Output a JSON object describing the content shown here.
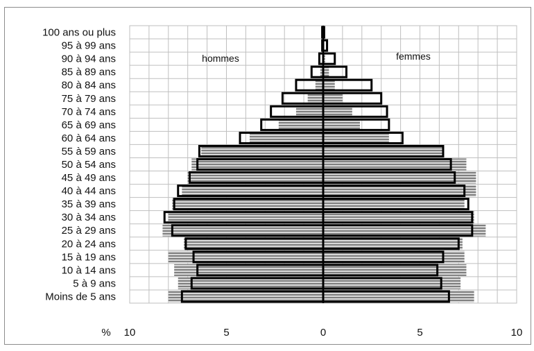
{
  "chart_data": {
    "type": "bar",
    "subtype": "population-pyramid",
    "categories": [
      "Moins de 5 ans",
      "5 à 9 ans",
      "10 à 14 ans",
      "15 à 19 ans",
      "20 à 24 ans",
      "25 à 29 ans",
      "30 à 34 ans",
      "35 à 39 ans",
      "40 à 44 ans",
      "45 à 49 ans",
      "50 à 54 ans",
      "55 à 59 ans",
      "60 à 64 ans",
      "65 à 69 ans",
      "70 à 74 ans",
      "75 à 79 ans",
      "80 à 84 ans",
      "85 à 89 ans",
      "90 à 94 ans",
      "95 à 99 ans",
      "100 ans ou plus"
    ],
    "series": [
      {
        "style": "outlined-bars",
        "hommes": [
          7.3,
          6.8,
          6.5,
          6.7,
          7.1,
          7.8,
          8.2,
          7.7,
          7.5,
          6.9,
          6.5,
          6.4,
          4.3,
          3.2,
          2.7,
          2.1,
          1.4,
          0.6,
          0.2,
          0.05,
          0.05
        ],
        "femmes": [
          6.5,
          6.1,
          5.9,
          6.2,
          7.0,
          7.7,
          7.7,
          7.5,
          7.3,
          6.8,
          6.6,
          6.2,
          4.1,
          3.4,
          3.3,
          3.0,
          2.5,
          1.2,
          0.6,
          0.2,
          0.05
        ]
      },
      {
        "style": "striped-bars",
        "hommes": [
          8.0,
          7.5,
          7.7,
          8.0,
          7.2,
          8.3,
          8.0,
          7.8,
          7.3,
          7.0,
          6.8,
          6.3,
          3.8,
          2.3,
          1.4,
          0.8,
          0.4,
          0.15,
          0.05,
          0.02,
          0.02
        ],
        "femmes": [
          7.8,
          7.1,
          7.4,
          7.3,
          7.2,
          8.4,
          7.8,
          7.3,
          7.9,
          7.9,
          7.4,
          6.2,
          3.4,
          1.9,
          1.5,
          1.0,
          0.6,
          0.3,
          0.1,
          0.05,
          0.02
        ]
      }
    ],
    "side_labels": {
      "left": "hommes",
      "right": "femmes"
    },
    "x_unit_label": "%",
    "x_ticks": [
      {
        "value": -10,
        "label": "10"
      },
      {
        "value": -5,
        "label": "5"
      },
      {
        "value": 0,
        "label": "0"
      },
      {
        "value": 5,
        "label": "5"
      },
      {
        "value": 10,
        "label": "10"
      }
    ],
    "xlim": [
      -10,
      10
    ],
    "grid": {
      "vertical": true,
      "horizontal_row_lines": true
    },
    "colors": {
      "outline": "#000000",
      "stripe_dark": "#7f7f7f",
      "stripe_light": "#d8d8d8",
      "grid": "#bfbfbf"
    }
  }
}
